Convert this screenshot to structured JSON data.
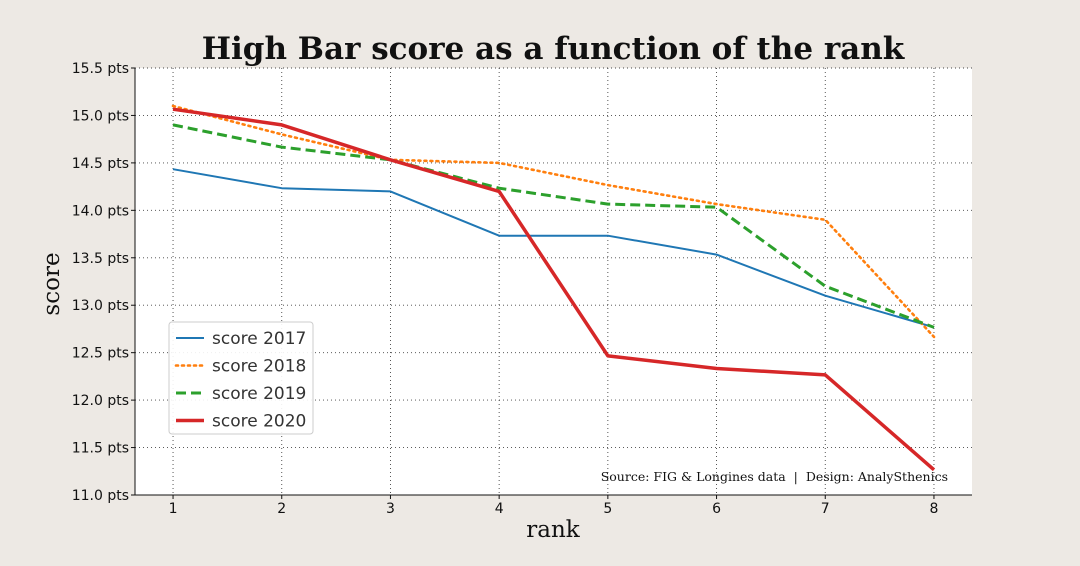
{
  "chart_data": {
    "type": "line",
    "title": "High Bar score as a function of the rank",
    "xlabel": "rank",
    "ylabel": "score",
    "x": [
      1,
      2,
      3,
      4,
      5,
      6,
      7,
      8
    ],
    "xlim": [
      0.65,
      8.35
    ],
    "ylim": [
      11.0,
      15.5
    ],
    "x_ticks": [
      "1",
      "2",
      "3",
      "4",
      "5",
      "6",
      "7",
      "8"
    ],
    "y_ticks": [
      11.0,
      11.5,
      12.0,
      12.5,
      13.0,
      13.5,
      14.0,
      14.5,
      15.0,
      15.5
    ],
    "y_tick_labels": [
      "11.0 pts",
      "11.5 pts",
      "12.0 pts",
      "12.5 pts",
      "13.0 pts",
      "13.5 pts",
      "14.0 pts",
      "14.5 pts",
      "15.0 pts",
      "15.5 pts"
    ],
    "grid": true,
    "legend_position": "center-left",
    "series": [
      {
        "name": "score 2017",
        "color": "#1f77b4",
        "style": "solid",
        "values": [
          14.433,
          14.233,
          14.2,
          13.733,
          13.733,
          13.533,
          13.1,
          12.767
        ]
      },
      {
        "name": "score 2018",
        "color": "#ff7f0e",
        "style": "dotted",
        "values": [
          15.1,
          14.8,
          14.533,
          14.5,
          14.266,
          14.066,
          13.9,
          12.666
        ]
      },
      {
        "name": "score 2019",
        "color": "#2ca02c",
        "style": "dashed",
        "values": [
          14.9,
          14.666,
          14.533,
          14.233,
          14.066,
          14.033,
          13.2,
          12.766
        ]
      },
      {
        "name": "score 2020",
        "color": "#d62728",
        "style": "solid-thick",
        "values": [
          15.066,
          14.9,
          14.533,
          14.2,
          12.466,
          12.333,
          12.266,
          11.266
        ]
      }
    ],
    "annotation": "Source: FIG & Longines data  |  Design: AnalySthenics"
  }
}
